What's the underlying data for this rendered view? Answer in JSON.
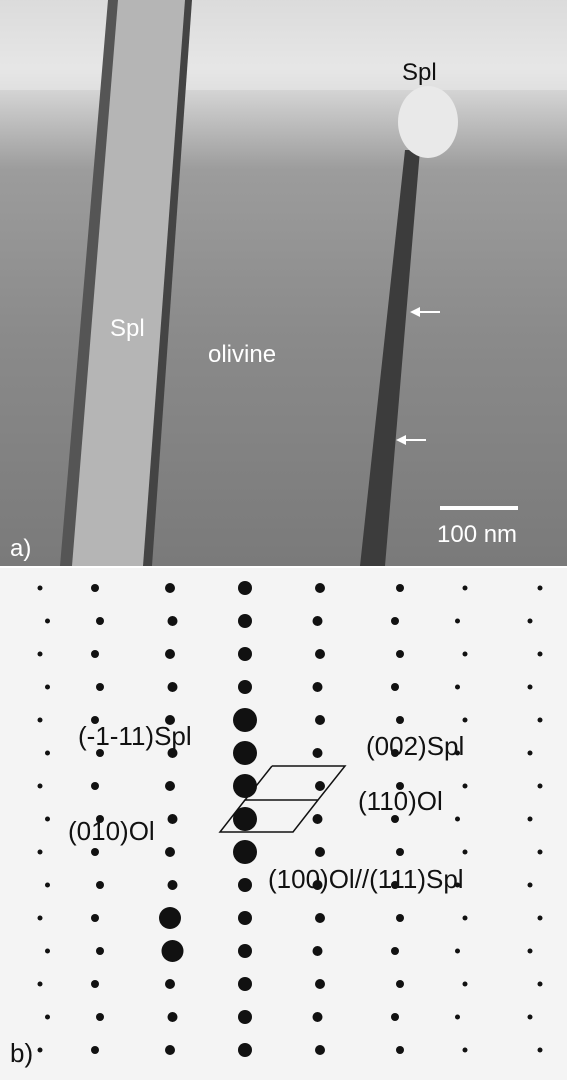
{
  "panel_a": {
    "label": "a)",
    "annotations": [
      "Spl",
      "Spl",
      "olivine"
    ],
    "scale_bar": "100 nm"
  },
  "panel_b": {
    "label": "b)",
    "annotations": [
      "(-1-11)Spl",
      "(002)Spl",
      "(010)Ol",
      "(110)Ol",
      "(100)Ol//(111)Spl"
    ]
  }
}
